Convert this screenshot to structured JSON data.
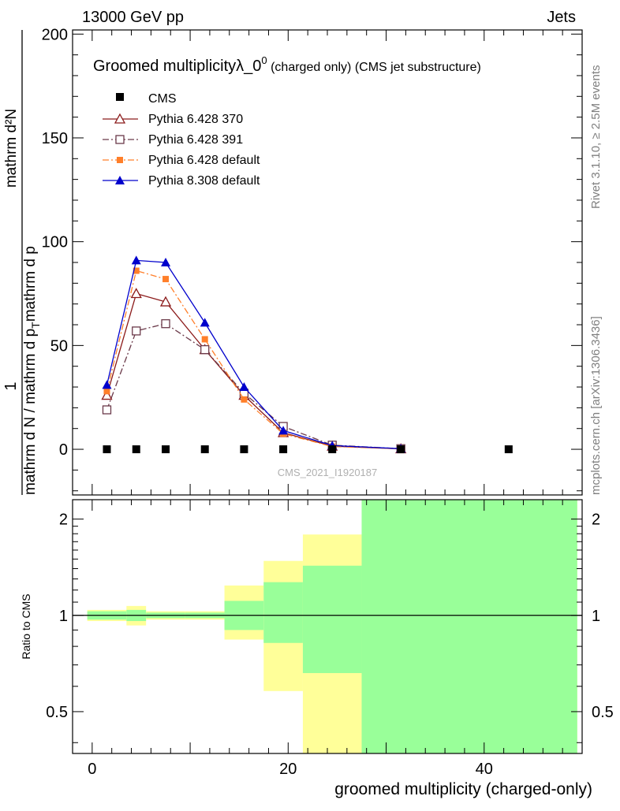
{
  "header": {
    "left": "13000 GeV pp",
    "right": "Jets"
  },
  "side_text": {
    "rivet": "Rivet 3.1.10, ≥ 2.5M events",
    "mcplots": "mcplots.cern.ch [arXiv:1306.3436]"
  },
  "main_plot": {
    "title": "Groomed multiplicityλ_0",
    "title_sup": "0",
    "title_suffix": " (charged only) (CMS jet substructure)",
    "ylabel_num": "1",
    "ylabel_den": "mathrm d N / mathrm d p",
    "ylabel_den_sub": "T",
    "ylabel_den_tail": "mathrm d p",
    "ylabel_num_right": "mathrm d²N",
    "ylabel_full_numer": "mathrm d²N",
    "watermark": "CMS_2021_I1920187"
  },
  "ratio_plot": {
    "ylabel": "Ratio to CMS"
  },
  "xlabel": "groomed multiplicity (charged-only)",
  "chart_data": {
    "type": "line",
    "x_range": [
      -2,
      50
    ],
    "y_range": [
      -22,
      202
    ],
    "ratio_y_range": [
      0.37,
      2.3
    ],
    "x_ticks": [
      0,
      20,
      40
    ],
    "y_ticks": [
      0,
      50,
      100,
      150,
      200
    ],
    "ratio_y_ticks": [
      0.5,
      1,
      2
    ],
    "legend_position": "top-left",
    "cms": {
      "name": "CMS",
      "x": [
        1.5,
        4.5,
        7.5,
        11.5,
        15.5,
        19.5,
        24.5,
        31.5,
        42.5
      ],
      "y": [
        0,
        0,
        0,
        0,
        0,
        0,
        0,
        0,
        0
      ]
    },
    "series": [
      {
        "name": "Pythia 6.428 370",
        "color": "#8b1a1a",
        "marker": "open-triangle",
        "dash": "solid",
        "x": [
          1.5,
          4.5,
          7.5,
          11.5,
          15.5,
          19.5,
          24.5,
          31.5
        ],
        "y": [
          26,
          75,
          71,
          48,
          26,
          8,
          1.5,
          0.2
        ]
      },
      {
        "name": "Pythia 6.428 391",
        "color": "#6b3a4a",
        "marker": "open-square",
        "dash": "dashdot",
        "x": [
          1.5,
          4.5,
          7.5,
          11.5,
          15.5,
          19.5,
          24.5,
          31.5
        ],
        "y": [
          19,
          57,
          60.5,
          48,
          27,
          11,
          2,
          0.3
        ]
      },
      {
        "name": "Pythia 6.428 default",
        "color": "#ff7f2a",
        "marker": "filled-square",
        "dash": "dashdot",
        "x": [
          1.5,
          4.5,
          7.5,
          11.5,
          15.5,
          19.5,
          24.5,
          31.5
        ],
        "y": [
          28,
          86,
          82,
          53,
          24,
          7.5,
          1.3,
          0.2
        ]
      },
      {
        "name": "Pythia 8.308 default",
        "color": "#0000cc",
        "marker": "filled-triangle",
        "dash": "solid",
        "x": [
          1.5,
          4.5,
          7.5,
          11.5,
          15.5,
          19.5,
          24.5,
          31.5
        ],
        "y": [
          31,
          91,
          90,
          61,
          30,
          9,
          1.8,
          0.3
        ]
      }
    ],
    "ratio_bands": [
      {
        "x0": -0.5,
        "x1": 3.5,
        "yellow": [
          0.96,
          1.04
        ],
        "green": [
          0.97,
          1.03
        ]
      },
      {
        "x0": 3.5,
        "x1": 5.5,
        "yellow": [
          0.93,
          1.07
        ],
        "green": [
          0.96,
          1.04
        ]
      },
      {
        "x0": 5.5,
        "x1": 9.5,
        "yellow": [
          0.97,
          1.03
        ],
        "green": [
          0.98,
          1.02
        ]
      },
      {
        "x0": 9.5,
        "x1": 13.5,
        "yellow": [
          0.97,
          1.03
        ],
        "green": [
          0.98,
          1.02
        ]
      },
      {
        "x0": 13.5,
        "x1": 17.5,
        "yellow": [
          0.84,
          1.24
        ],
        "green": [
          0.9,
          1.11
        ]
      },
      {
        "x0": 17.5,
        "x1": 21.5,
        "yellow": [
          0.58,
          1.48
        ],
        "green": [
          0.82,
          1.27
        ]
      },
      {
        "x0": 21.5,
        "x1": 27.5,
        "yellow": [
          0.37,
          1.79
        ],
        "green": [
          0.66,
          1.43
        ]
      },
      {
        "x0": 27.5,
        "x1": 49.5,
        "yellow": [
          0.37,
          2.3
        ],
        "green": [
          0.37,
          2.3
        ]
      }
    ]
  }
}
